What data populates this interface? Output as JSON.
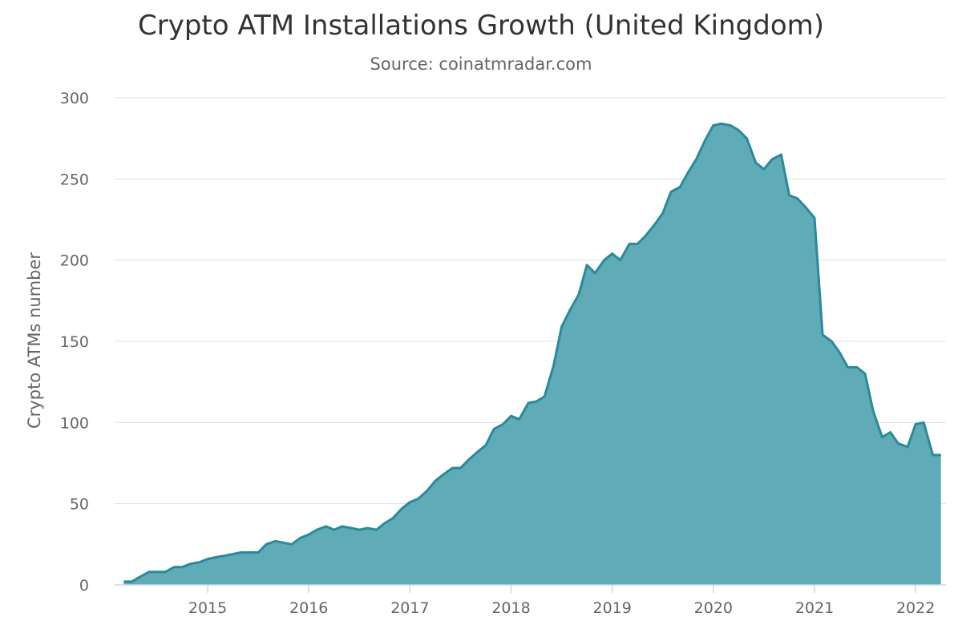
{
  "chart_data": {
    "type": "area",
    "title": "Crypto ATM Installations Growth (United Kingdom)",
    "subtitle": "Source: coinatmradar.com",
    "xlabel": "",
    "ylabel": "Crypto ATMs number",
    "ylim": [
      0,
      300
    ],
    "yticks": [
      0,
      50,
      100,
      150,
      200,
      250,
      300
    ],
    "xlim": [
      2014.08,
      2022.3
    ],
    "xticks": [
      2015,
      2016,
      2017,
      2018,
      2019,
      2020,
      2021,
      2022
    ],
    "xtick_labels": [
      "2015",
      "2016",
      "2017",
      "2018",
      "2019",
      "2020",
      "2021",
      "2022"
    ],
    "grid": true,
    "legend": "none",
    "fill_color": "#5FABB7",
    "line_color": "#2A8A9A",
    "series": [
      {
        "x": [
          2014.17,
          2014.25,
          2014.33,
          2014.42,
          2014.5,
          2014.58,
          2014.67,
          2014.75,
          2014.83,
          2014.92,
          2015.0,
          2015.08,
          2015.17,
          2015.25,
          2015.33,
          2015.42,
          2015.5,
          2015.58,
          2015.67,
          2015.75,
          2015.83,
          2015.92,
          2016.0,
          2016.08,
          2016.17,
          2016.25,
          2016.33,
          2016.42,
          2016.5,
          2016.58,
          2016.67,
          2016.75,
          2016.83,
          2016.92,
          2017.0,
          2017.08,
          2017.17,
          2017.25,
          2017.33,
          2017.42,
          2017.5,
          2017.58,
          2017.67,
          2017.75,
          2017.83,
          2017.92,
          2018.0,
          2018.08,
          2018.17,
          2018.25,
          2018.33,
          2018.42,
          2018.5,
          2018.58,
          2018.67,
          2018.75,
          2018.83,
          2018.92,
          2019.0,
          2019.08,
          2019.17,
          2019.25,
          2019.33,
          2019.42,
          2019.5,
          2019.58,
          2019.67,
          2019.75,
          2019.83,
          2019.92,
          2020.0,
          2020.08,
          2020.17,
          2020.25,
          2020.33,
          2020.42,
          2020.5,
          2020.58,
          2020.67,
          2020.75,
          2020.83,
          2020.92,
          2021.0,
          2021.08,
          2021.17,
          2021.25,
          2021.33,
          2021.42,
          2021.5,
          2021.58,
          2021.67,
          2021.75,
          2021.83,
          2021.92,
          2022.0,
          2022.08,
          2022.17,
          2022.25
        ],
        "values": [
          2,
          2,
          5,
          8,
          8,
          8,
          11,
          11,
          13,
          14,
          16,
          17,
          18,
          19,
          20,
          20,
          20,
          25,
          27,
          26,
          25,
          29,
          31,
          34,
          36,
          34,
          36,
          35,
          34,
          35,
          34,
          38,
          41,
          47,
          51,
          53,
          58,
          64,
          68,
          72,
          72,
          77,
          82,
          86,
          96,
          99,
          104,
          102,
          112,
          113,
          116,
          135,
          159,
          169,
          179,
          197,
          192,
          200,
          204,
          200,
          210,
          210,
          215,
          222,
          229,
          242,
          245,
          254,
          262,
          274,
          283,
          284,
          283,
          280,
          275,
          260,
          256,
          262,
          265,
          240,
          238,
          232,
          226,
          154,
          150,
          143,
          134,
          134,
          130,
          107,
          91,
          94,
          87,
          85,
          99,
          100,
          80,
          80
        ]
      }
    ]
  }
}
